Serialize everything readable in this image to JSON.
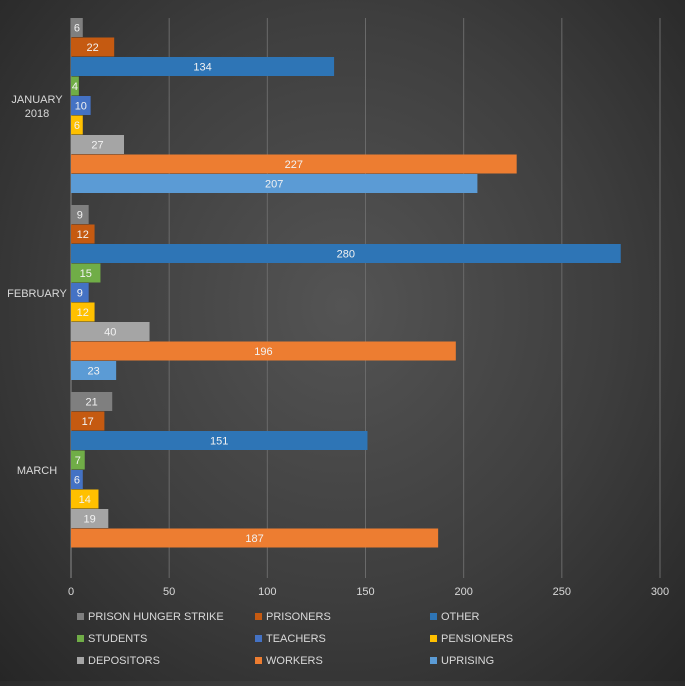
{
  "chart_data": {
    "type": "bar",
    "orientation": "horizontal",
    "categories": [
      "JANUARY 2018",
      "FEBRUARY",
      "MARCH"
    ],
    "series": [
      {
        "name": "PRISON HUNGER STRIKE",
        "color": "#7f7f7f",
        "values": [
          6,
          9,
          21
        ]
      },
      {
        "name": "PRISONERS",
        "color": "#c55a11",
        "values": [
          22,
          12,
          17
        ]
      },
      {
        "name": "OTHER",
        "color": "#2e75b6",
        "values": [
          134,
          280,
          151
        ]
      },
      {
        "name": "STUDENTS",
        "color": "#70ad47",
        "values": [
          4,
          15,
          7
        ]
      },
      {
        "name": "TEACHERS",
        "color": "#4472c4",
        "values": [
          10,
          9,
          6
        ]
      },
      {
        "name": "PENSIONERS",
        "color": "#ffc000",
        "values": [
          6,
          12,
          14
        ]
      },
      {
        "name": "DEPOSITORS",
        "color": "#a5a5a5",
        "values": [
          27,
          40,
          19
        ]
      },
      {
        "name": "WORKERS",
        "color": "#ed7d31",
        "values": [
          227,
          196,
          187
        ]
      },
      {
        "name": "UPRISING",
        "color": "#5b9bd5",
        "values": [
          207,
          23,
          null
        ]
      }
    ],
    "xlim": [
      0,
      300
    ],
    "xticks": [
      0,
      50,
      100,
      150,
      200,
      250,
      300
    ],
    "grid": true,
    "legend_position": "bottom"
  }
}
